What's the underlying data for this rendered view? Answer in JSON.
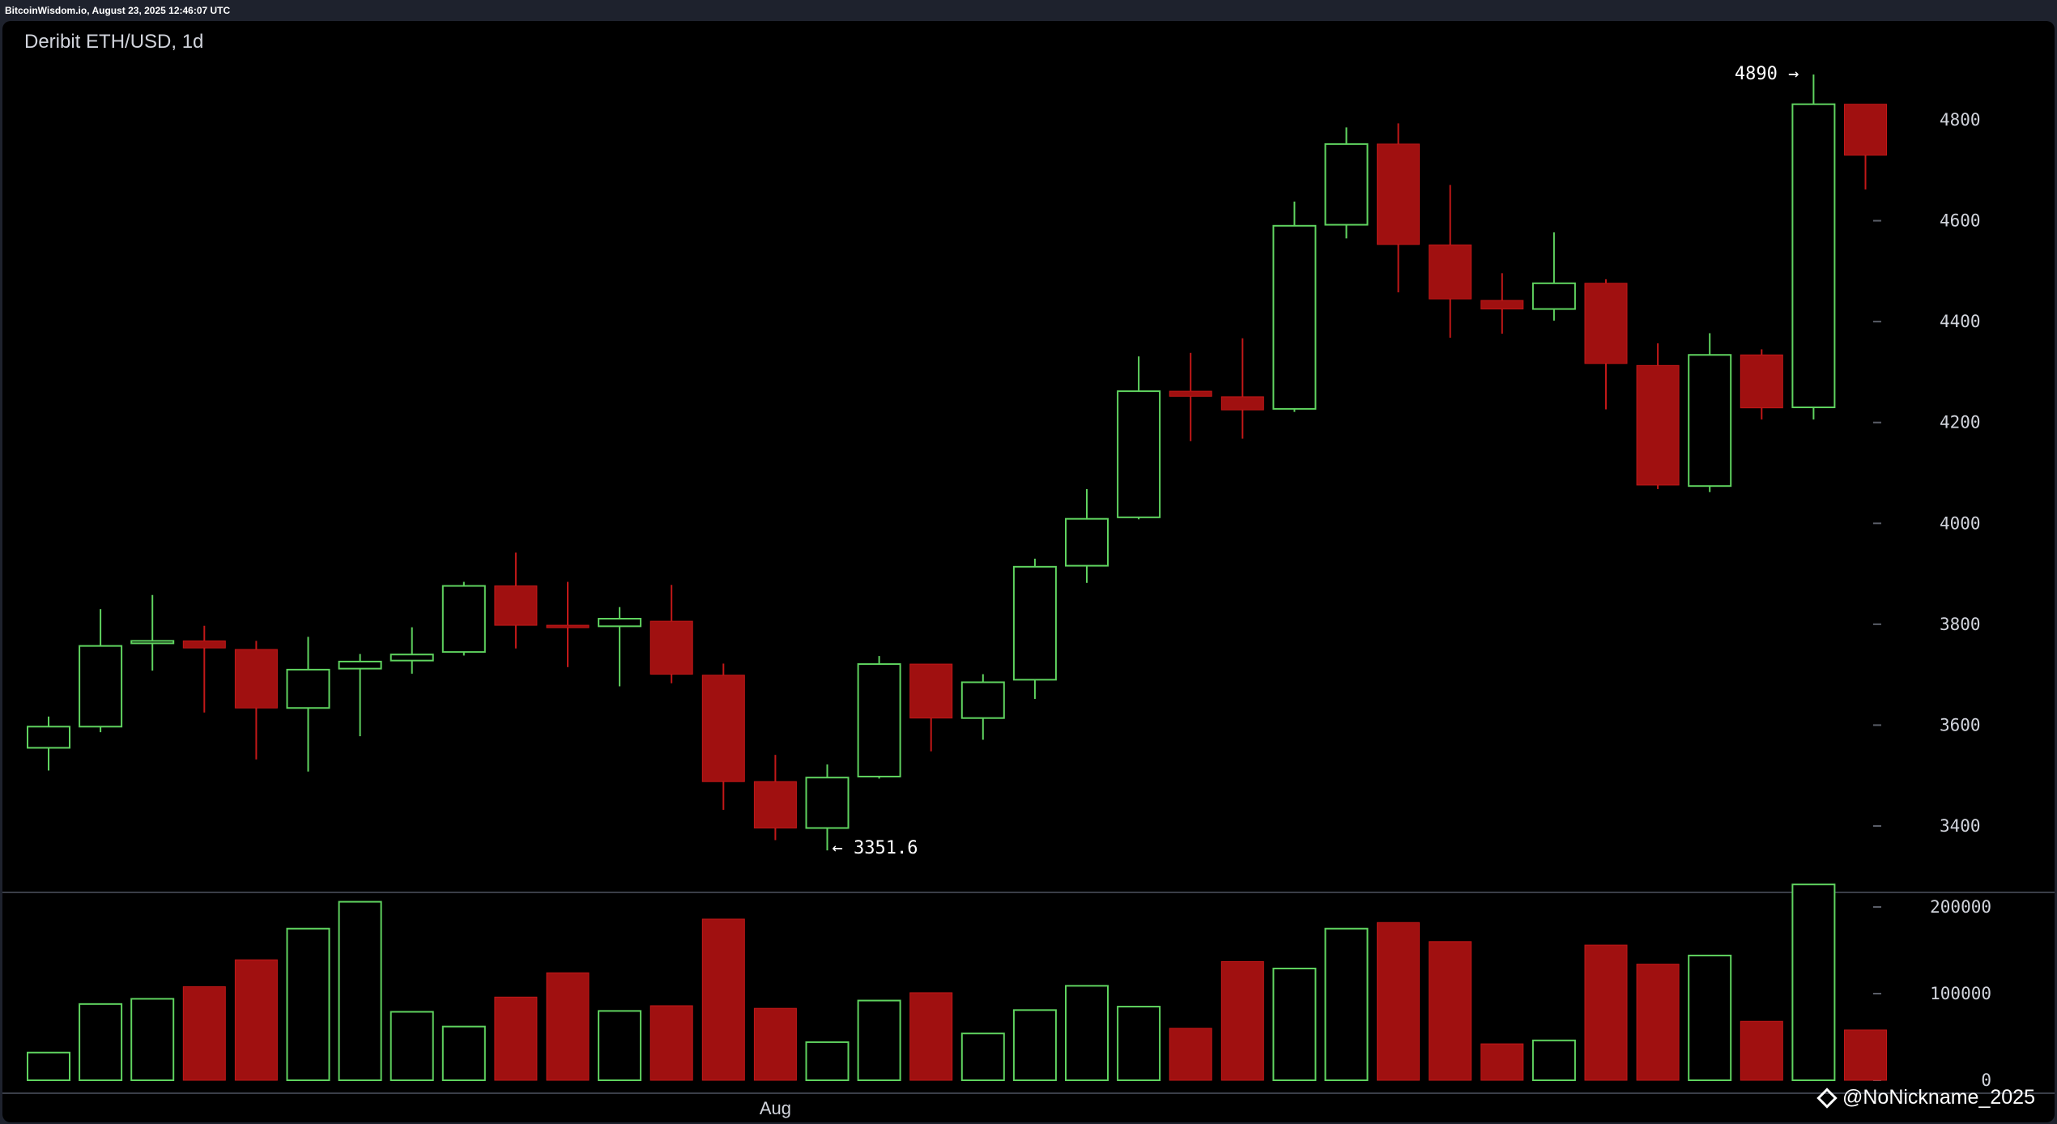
{
  "header": {
    "timestamp_text": "BitcoinWisdom.io, August 23, 2025 12:46:07 UTC"
  },
  "watermark": {
    "text": "@NoNickname_2025"
  },
  "chart_data": {
    "type": "candlestick",
    "title": "Deribit ETH/USD, 1d",
    "colors": {
      "up": "#5fd35f",
      "down": "#a01010",
      "down_outline": "#c21818",
      "background": "#000000",
      "axis_text": "#d1d4dc"
    },
    "price_axis": {
      "ticks": [
        3400,
        3600,
        3800,
        4000,
        4200,
        4400,
        4600,
        4800
      ],
      "range": [
        3280,
        4960
      ]
    },
    "volume_axis": {
      "ticks": [
        0,
        100000,
        200000
      ],
      "tick_labels": [
        "0",
        "100000",
        "200000"
      ],
      "range": [
        0,
        230000
      ]
    },
    "x_labels": [
      {
        "text": "Aug",
        "index": 14
      }
    ],
    "annotations": [
      {
        "text": "4890 →",
        "index": 34,
        "price": 4890,
        "side": "left"
      },
      {
        "text": "← 3351.6",
        "index": 15,
        "price": 3351.6,
        "side": "right"
      }
    ],
    "candles": [
      {
        "o": 3555,
        "h": 3617,
        "l": 3510,
        "c": 3597,
        "v": 32000
      },
      {
        "o": 3597,
        "h": 3830,
        "l": 3586,
        "c": 3757,
        "v": 88000
      },
      {
        "o": 3763,
        "h": 3858,
        "l": 3708,
        "c": 3767,
        "v": 94000
      },
      {
        "o": 3767,
        "h": 3797,
        "l": 3625,
        "c": 3753,
        "v": 108000
      },
      {
        "o": 3750,
        "h": 3767,
        "l": 3532,
        "c": 3634,
        "v": 139000
      },
      {
        "o": 3634,
        "h": 3775,
        "l": 3508,
        "c": 3710,
        "v": 175000
      },
      {
        "o": 3712,
        "h": 3741,
        "l": 3578,
        "c": 3726,
        "v": 206000
      },
      {
        "o": 3728,
        "h": 3794,
        "l": 3702,
        "c": 3740,
        "v": 79000
      },
      {
        "o": 3745,
        "h": 3884,
        "l": 3738,
        "c": 3876,
        "v": 62000
      },
      {
        "o": 3876,
        "h": 3942,
        "l": 3752,
        "c": 3798,
        "v": 96000
      },
      {
        "o": 3798,
        "h": 3884,
        "l": 3715,
        "c": 3796,
        "v": 124000
      },
      {
        "o": 3796,
        "h": 3834,
        "l": 3677,
        "c": 3811,
        "v": 80000
      },
      {
        "o": 3806,
        "h": 3878,
        "l": 3683,
        "c": 3701,
        "v": 86000
      },
      {
        "o": 3699,
        "h": 3722,
        "l": 3432,
        "c": 3488,
        "v": 186000
      },
      {
        "o": 3488,
        "h": 3541,
        "l": 3372,
        "c": 3396,
        "v": 83000
      },
      {
        "o": 3396,
        "h": 3522,
        "l": 3351.6,
        "c": 3496,
        "v": 44000
      },
      {
        "o": 3498,
        "h": 3737,
        "l": 3494,
        "c": 3721,
        "v": 92000
      },
      {
        "o": 3721,
        "h": 3721,
        "l": 3548,
        "c": 3614,
        "v": 101000
      },
      {
        "o": 3614,
        "h": 3701,
        "l": 3571,
        "c": 3685,
        "v": 54000
      },
      {
        "o": 3690,
        "h": 3930,
        "l": 3652,
        "c": 3914,
        "v": 81000
      },
      {
        "o": 3916,
        "h": 4068,
        "l": 3882,
        "c": 4009,
        "v": 109000
      },
      {
        "o": 4012,
        "h": 4331,
        "l": 4008,
        "c": 4262,
        "v": 85000
      },
      {
        "o": 4262,
        "h": 4338,
        "l": 4163,
        "c": 4252,
        "v": 60000
      },
      {
        "o": 4251,
        "h": 4367,
        "l": 4168,
        "c": 4225,
        "v": 137000
      },
      {
        "o": 4227,
        "h": 4638,
        "l": 4221,
        "c": 4590,
        "v": 129000
      },
      {
        "o": 4592,
        "h": 4785,
        "l": 4565,
        "c": 4752,
        "v": 175000
      },
      {
        "o": 4752,
        "h": 4793,
        "l": 4458,
        "c": 4553,
        "v": 182000
      },
      {
        "o": 4552,
        "h": 4671,
        "l": 4368,
        "c": 4445,
        "v": 160000
      },
      {
        "o": 4442,
        "h": 4496,
        "l": 4376,
        "c": 4425,
        "v": 42000
      },
      {
        "o": 4425,
        "h": 4577,
        "l": 4402,
        "c": 4476,
        "v": 46000
      },
      {
        "o": 4476,
        "h": 4484,
        "l": 4226,
        "c": 4317,
        "v": 156000
      },
      {
        "o": 4313,
        "h": 4357,
        "l": 4068,
        "c": 4076,
        "v": 134000
      },
      {
        "o": 4074,
        "h": 4377,
        "l": 4062,
        "c": 4334,
        "v": 144000
      },
      {
        "o": 4334,
        "h": 4345,
        "l": 4206,
        "c": 4229,
        "v": 68000
      },
      {
        "o": 4230,
        "h": 4890,
        "l": 4206,
        "c": 4831,
        "v": 226000
      },
      {
        "o": 4831,
        "h": 4831,
        "l": 4662,
        "c": 4730,
        "v": 58000
      }
    ]
  }
}
